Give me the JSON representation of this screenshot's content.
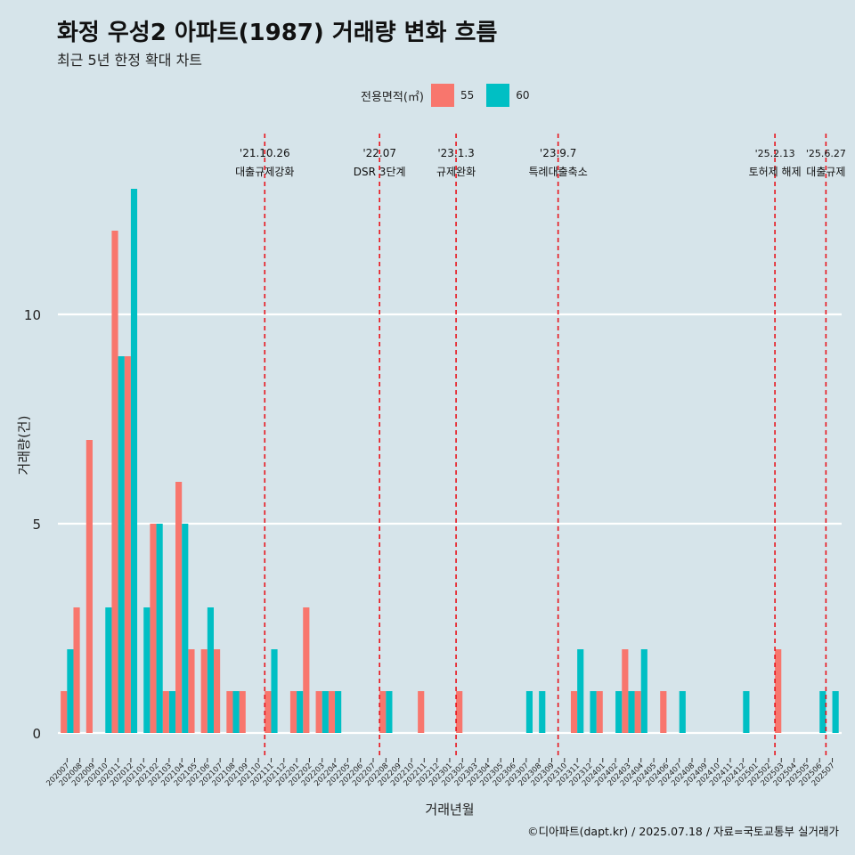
{
  "title": "화정 우성2 아파트(1987) 거래량 변화 흐름",
  "subtitle": "최근 5년 한정 확대 차트",
  "legend": {
    "title": "전용면적(㎡)",
    "items": [
      {
        "label": "55",
        "color": "#f8766d"
      },
      {
        "label": "60",
        "color": "#00bfc4"
      }
    ]
  },
  "caption": "©디아파트(dapt.kr) / 2025.07.18 / 자료=국토교통부 실거래가",
  "chart_data": {
    "type": "bar",
    "xlabel": "거래년월",
    "ylabel": "거래량(건)",
    "ylim": [
      0,
      14
    ],
    "yticks": [
      0,
      5,
      10
    ],
    "categories": [
      "202007",
      "202008",
      "202009",
      "202010",
      "202011",
      "202012",
      "202101",
      "202102",
      "202103",
      "202104",
      "202105",
      "202106",
      "202107",
      "202108",
      "202109",
      "202110",
      "202111",
      "202112",
      "202201",
      "202202",
      "202203",
      "202204",
      "202205",
      "202206",
      "202207",
      "202208",
      "202209",
      "202210",
      "202211",
      "202212",
      "202301",
      "202302",
      "202303",
      "202304",
      "202305",
      "202306",
      "202307",
      "202308",
      "202309",
      "202310",
      "202311",
      "202312",
      "202401",
      "202402",
      "202403",
      "202404",
      "202405",
      "202406",
      "202407",
      "202408",
      "202409",
      "202410",
      "202411",
      "202412",
      "202501",
      "202502",
      "202503",
      "202504",
      "202505",
      "202506",
      "202507"
    ],
    "series": [
      {
        "name": "55",
        "color": "#f8766d",
        "values": [
          1,
          3,
          7,
          0,
          12,
          9,
          0,
          5,
          1,
          6,
          2,
          2,
          2,
          1,
          1,
          0,
          1,
          0,
          1,
          3,
          1,
          1,
          0,
          0,
          0,
          1,
          0,
          0,
          1,
          0,
          0,
          1,
          0,
          0,
          0,
          0,
          0,
          0,
          0,
          0,
          1,
          0,
          1,
          0,
          2,
          1,
          0,
          1,
          0,
          0,
          0,
          0,
          0,
          0,
          0,
          0,
          2,
          0,
          0,
          0,
          0
        ]
      },
      {
        "name": "60",
        "color": "#00bfc4",
        "values": [
          2,
          0,
          0,
          3,
          9,
          13,
          3,
          5,
          1,
          5,
          0,
          3,
          0,
          1,
          0,
          0,
          2,
          0,
          1,
          0,
          1,
          1,
          0,
          0,
          0,
          1,
          0,
          0,
          0,
          0,
          0,
          0,
          0,
          0,
          0,
          0,
          1,
          1,
          0,
          0,
          2,
          1,
          0,
          1,
          1,
          2,
          0,
          0,
          1,
          0,
          0,
          0,
          0,
          1,
          0,
          0,
          0,
          0,
          0,
          1,
          1
        ]
      }
    ],
    "annotations": [
      {
        "date": "'21.10.26",
        "label": "대출규제강화",
        "category_index": 15.5
      },
      {
        "date": "'22.07",
        "label": "DSR 3단계",
        "category_index": 24.5
      },
      {
        "date": "'23.1.3",
        "label": "규제완화",
        "category_index": 30.5
      },
      {
        "date": "'23.9.7",
        "label": "특례대출축소",
        "category_index": 38.5
      },
      {
        "date": "'25.2.13",
        "label": "토허제 해제",
        "category_index": 55.5
      },
      {
        "date": "'25.6.27",
        "label": "대출규제",
        "category_index": 59.5
      }
    ]
  }
}
